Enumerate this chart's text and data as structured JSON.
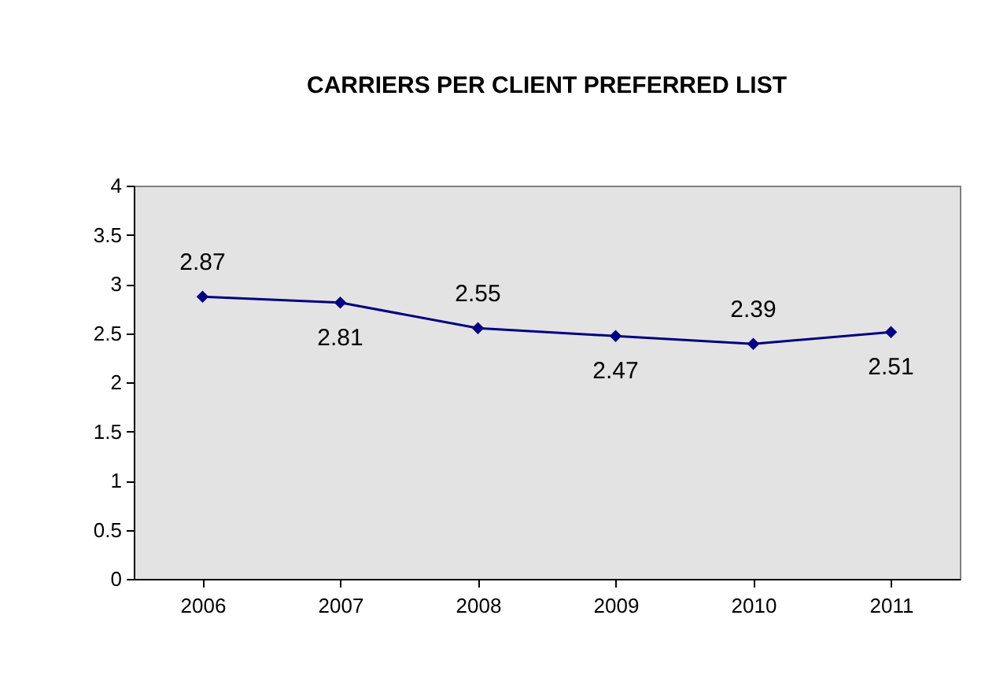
{
  "chart_data": {
    "type": "line",
    "title": "CARRIERS PER CLIENT PREFERRED LIST",
    "categories": [
      "2006",
      "2007",
      "2008",
      "2009",
      "2010",
      "2011"
    ],
    "series": [
      {
        "color": "#000080",
        "values": [
          2.87,
          2.81,
          2.55,
          2.47,
          2.39,
          2.51
        ]
      }
    ],
    "ylim": [
      0,
      4
    ],
    "yticks": [
      0,
      0.5,
      1,
      1.5,
      2,
      2.5,
      3,
      3.5,
      4
    ],
    "data_labels": true,
    "marker": "diamond",
    "grid": false,
    "legend": false
  }
}
